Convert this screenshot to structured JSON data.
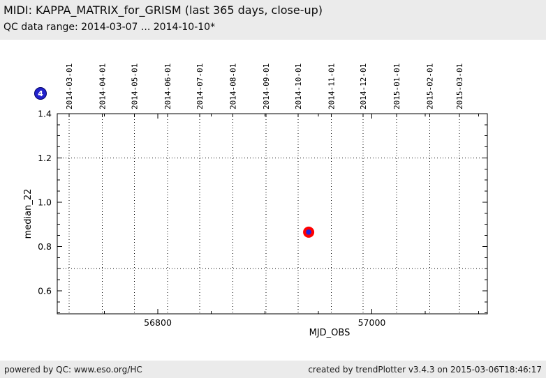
{
  "header": {
    "title": "MIDI: KAPPA_MATRIX_for_GRISM (last 365 days, close-up)",
    "subtitle": "QC data range: 2014-03-07 ... 2014-10-10*"
  },
  "badge": {
    "count": "4",
    "fill": "#2222cc",
    "border": "#000066",
    "text_color": "#ffffff"
  },
  "footer": {
    "left": "powered by QC: www.eso.org/HC",
    "right": "created by trendPlotter v3.4.3 on 2015-03-06T18:46:17"
  },
  "colors": {
    "band_bg": "#ebebeb",
    "plot_bg": "#ffffff",
    "axis": "#000000",
    "point_outer": "#ff0000",
    "point_inner": "#2222dd"
  },
  "chart_data": {
    "type": "scatter",
    "title": "MIDI: KAPPA_MATRIX_for_GRISM (last 365 days, close-up)",
    "xlabel": "MJD_OBS",
    "ylabel": "median_22",
    "xlim": [
      56706,
      57108
    ],
    "ylim": [
      0.496,
      1.4
    ],
    "x_ticks_major": [
      56800,
      57000
    ],
    "x_minor_step": 50,
    "y_ticks_major": [
      0.6,
      0.8,
      1.0,
      1.2,
      1.4
    ],
    "y_minor_step": 0.05,
    "grid": "vertical dotted lines at month starts; horizontal dotted threshold lines",
    "legend": "none",
    "threshold_lines_y": [
      0.7,
      1.2
    ],
    "date_axis_top": [
      {
        "label": "2014-03-01",
        "mjd": 56717
      },
      {
        "label": "2014-04-01",
        "mjd": 56748
      },
      {
        "label": "2014-05-01",
        "mjd": 56778
      },
      {
        "label": "2014-06-01",
        "mjd": 56809
      },
      {
        "label": "2014-07-01",
        "mjd": 56839
      },
      {
        "label": "2014-08-01",
        "mjd": 56870
      },
      {
        "label": "2014-09-01",
        "mjd": 56901
      },
      {
        "label": "2014-10-01",
        "mjd": 56931
      },
      {
        "label": "2014-11-01",
        "mjd": 56962
      },
      {
        "label": "2014-12-01",
        "mjd": 56992
      },
      {
        "label": "2015-01-01",
        "mjd": 57023
      },
      {
        "label": "2015-02-01",
        "mjd": 57054
      },
      {
        "label": "2015-03-01",
        "mjd": 57082
      }
    ],
    "points": [
      {
        "x": 56941,
        "y": 0.865
      }
    ]
  }
}
